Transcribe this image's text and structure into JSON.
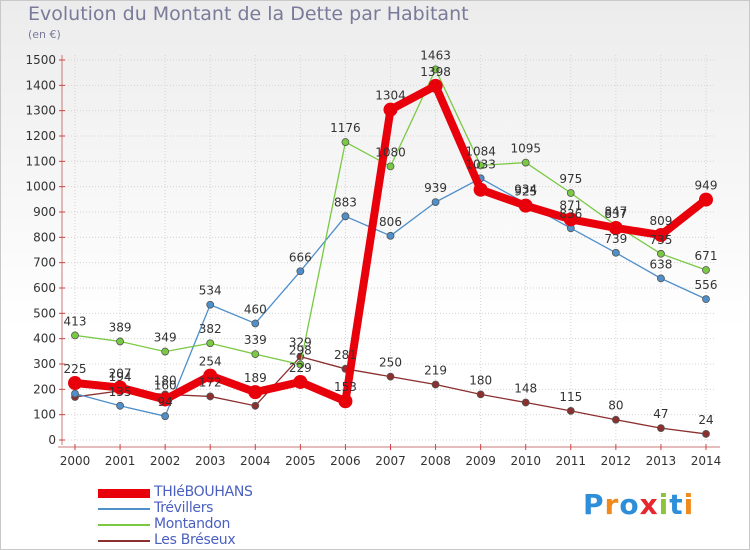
{
  "header": {
    "title": "Evolution du Montant de la Dette par Habitant",
    "unit": "(en €)"
  },
  "logo": {
    "letters": [
      "P",
      "r",
      "o",
      "x",
      "i",
      "t",
      "i"
    ],
    "colors": [
      "#2e8fd8",
      "#f08a1c",
      "#2e8fd8",
      "#e8262e",
      "#8cc43c",
      "#2e8fd8",
      "#f08a1c"
    ]
  },
  "chart_data": {
    "type": "line",
    "title": "Evolution du Montant de la Dette par Habitant",
    "ylabel": "(en €)",
    "xlabel": "",
    "x": [
      "2000",
      "2001",
      "2002",
      "2003",
      "2004",
      "2005",
      "2006",
      "2007",
      "2008",
      "2009",
      "2010",
      "2011",
      "2012",
      "2013",
      "2014"
    ],
    "ylim": [
      0,
      1500
    ],
    "yticks": [
      "0",
      "100",
      "200",
      "300",
      "400",
      "500",
      "600",
      "700",
      "800",
      "900",
      "1000",
      "1100",
      "1200",
      "1300",
      "1400",
      "1500"
    ],
    "grid": true,
    "legend": "bottom-left",
    "series": [
      {
        "name": "THIéBOUHANS",
        "color": "#e8000b",
        "values": [
          225,
          207,
          160,
          254,
          189,
          229,
          153,
          1304,
          1398,
          988,
          925,
          871,
          837,
          809,
          949
        ],
        "labels": [
          "225",
          "207",
          "160",
          "254",
          "189",
          "229",
          "153",
          "1304",
          "1398",
          "",
          "925",
          "871",
          "837",
          "809",
          "949"
        ]
      },
      {
        "name": "Trévillers",
        "color": "#4f8fca",
        "values": [
          183,
          135,
          94,
          534,
          460,
          666,
          883,
          806,
          939,
          1033,
          934,
          836,
          739,
          638,
          556
        ],
        "labels": [
          "",
          "135",
          "94",
          "534",
          "460",
          "666",
          "883",
          "806",
          "939",
          "1033",
          "934",
          "836",
          "739",
          "638",
          "556"
        ]
      },
      {
        "name": "Montandon",
        "color": "#7ac943",
        "values": [
          413,
          389,
          349,
          382,
          339,
          298,
          1176,
          1080,
          1463,
          1084,
          1095,
          975,
          847,
          735,
          671
        ],
        "labels": [
          "413",
          "389",
          "349",
          "382",
          "339",
          "298",
          "1176",
          "1080",
          "1463",
          "1084",
          "1095",
          "975",
          "847",
          "735",
          "671"
        ]
      },
      {
        "name": "Les Bréseux",
        "color": "#8b2f2f",
        "values": [
          170,
          194,
          180,
          172,
          135,
          329,
          281,
          250,
          219,
          180,
          148,
          115,
          80,
          47,
          24
        ],
        "labels": [
          "",
          "194",
          "180",
          "172",
          "",
          "329",
          "281",
          "250",
          "219",
          "180",
          "148",
          "115",
          "80",
          "47",
          "24"
        ]
      }
    ]
  }
}
